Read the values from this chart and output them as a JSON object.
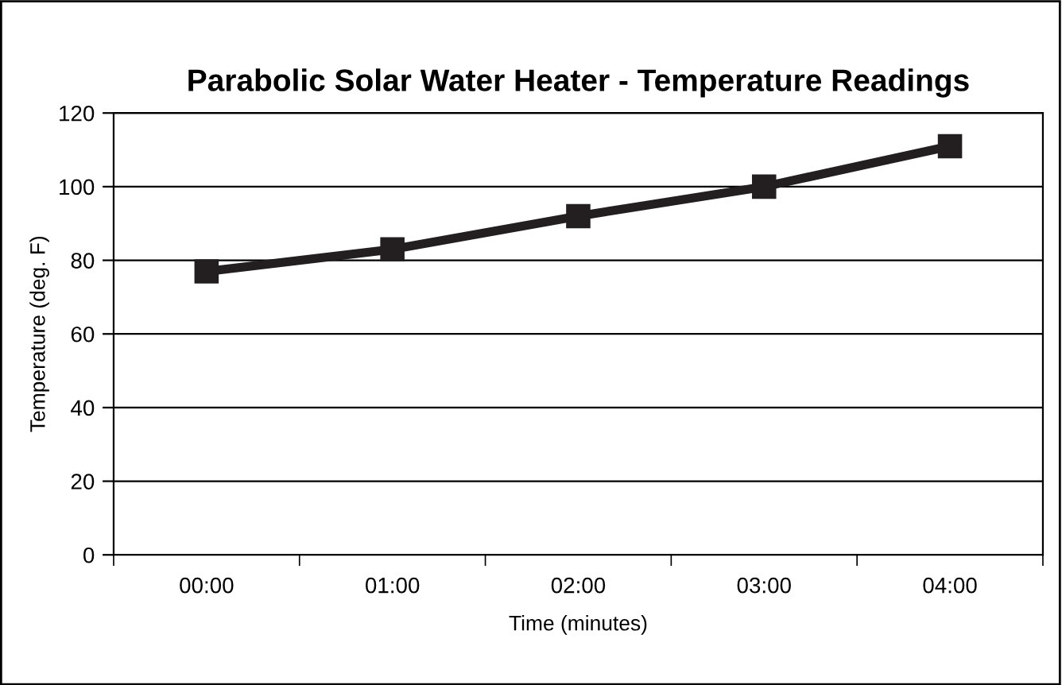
{
  "chart_data": {
    "type": "line",
    "title": "Parabolic Solar Water Heater - Temperature Readings",
    "xlabel": "Time (minutes)",
    "ylabel": "Temperature (deg. F)",
    "categories": [
      "00:00",
      "01:00",
      "02:00",
      "03:00",
      "04:00"
    ],
    "series": [
      {
        "color": "#231f20",
        "values": [
          77,
          83,
          92,
          100,
          111
        ]
      }
    ],
    "ylim": [
      0,
      120
    ],
    "yticks": [
      0,
      20,
      40,
      60,
      80,
      100,
      120
    ],
    "grid": "y",
    "marker": "square",
    "line_style": "solid"
  }
}
